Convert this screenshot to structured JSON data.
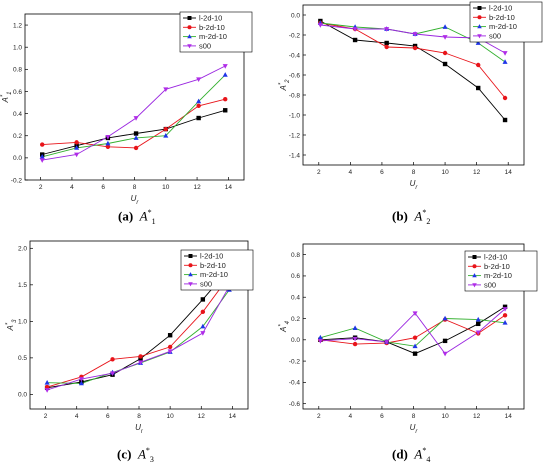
{
  "legend_labels": [
    "l-2d-10",
    "b-2d-10",
    "m-2d-10",
    "s00"
  ],
  "series_colors": [
    "#000000",
    "#e8141a",
    "#1f35e8",
    "#b02ce8"
  ],
  "marker_shapes": [
    "square",
    "circle",
    "triangle-up",
    "triangle-down"
  ],
  "line_colors": [
    "#000000",
    "#e8141a",
    "#33b02f",
    "#9a26e0"
  ],
  "chart_data": [
    {
      "type": "line",
      "caption": {
        "letter": "(a)",
        "var": "A",
        "sup": "*",
        "sub": "1"
      },
      "ylabel": {
        "var": "A",
        "sup": "*",
        "sub": "1"
      },
      "xlabel": {
        "var": "U",
        "sub": "r"
      },
      "x": [
        2.1,
        4.3,
        6.3,
        8.1,
        10.0,
        12.1,
        13.8
      ],
      "xticks": [
        "2",
        "4",
        "6",
        "8",
        "10",
        "12",
        "14"
      ],
      "yticks": [
        "-0.2",
        "0.0",
        "0.2",
        "0.4",
        "0.6",
        "0.8",
        "1.0",
        "1.2"
      ],
      "xlim": [
        1,
        15
      ],
      "ylim": [
        -0.2,
        1.3
      ],
      "series": [
        {
          "name": "l-2d-10",
          "values": [
            0.03,
            0.11,
            0.18,
            0.22,
            0.26,
            0.36,
            0.43
          ]
        },
        {
          "name": "b-2d-10",
          "values": [
            0.12,
            0.14,
            0.1,
            0.09,
            0.26,
            0.47,
            0.53
          ]
        },
        {
          "name": "m-2d-10",
          "values": [
            0.01,
            0.09,
            0.13,
            0.18,
            0.2,
            0.51,
            0.75
          ]
        },
        {
          "name": "s00",
          "values": [
            -0.02,
            0.03,
            0.19,
            0.36,
            0.62,
            0.71,
            0.83
          ]
        }
      ]
    },
    {
      "type": "line",
      "caption": {
        "letter": "(b)",
        "var": "A",
        "sup": "*",
        "sub": "2"
      },
      "ylabel": {
        "var": "A",
        "sup": "*",
        "sub": "2"
      },
      "xlabel": {
        "var": "U",
        "sub": "r"
      },
      "x": [
        2.1,
        4.3,
        6.3,
        8.1,
        10.0,
        12.1,
        13.8
      ],
      "xticks": [
        "2",
        "4",
        "6",
        "8",
        "10",
        "12",
        "14"
      ],
      "yticks": [
        "0.0",
        "-0.2",
        "-0.4",
        "-0.6",
        "-0.8",
        "-1.0",
        "-1.2",
        "-1.4"
      ],
      "xlim": [
        1,
        15
      ],
      "ylim": [
        -1.5,
        0.1
      ],
      "series": [
        {
          "name": "l-2d-10",
          "values": [
            -0.06,
            -0.25,
            -0.28,
            -0.31,
            -0.49,
            -0.73,
            -1.05
          ]
        },
        {
          "name": "b-2d-10",
          "values": [
            -0.08,
            -0.14,
            -0.32,
            -0.33,
            -0.38,
            -0.5,
            -0.83
          ]
        },
        {
          "name": "m-2d-10",
          "values": [
            -0.08,
            -0.12,
            -0.14,
            -0.19,
            -0.12,
            -0.28,
            -0.47
          ]
        },
        {
          "name": "s00",
          "values": [
            -0.1,
            -0.14,
            -0.14,
            -0.19,
            -0.22,
            -0.23,
            -0.38
          ]
        }
      ]
    },
    {
      "type": "line",
      "caption": {
        "letter": "(c)",
        "var": "A",
        "sup": "*",
        "sub": "3"
      },
      "ylabel": {
        "var": "A",
        "sup": "*",
        "sub": "3"
      },
      "xlabel": {
        "var": "U",
        "sub": "r"
      },
      "x": [
        2.1,
        4.3,
        6.3,
        8.1,
        10.0,
        12.1,
        13.8
      ],
      "xticks": [
        "2",
        "4",
        "6",
        "8",
        "10",
        "12",
        "14"
      ],
      "yticks": [
        "0.0",
        "0.5",
        "1.0",
        "1.5",
        "2.0"
      ],
      "xlim": [
        1,
        15
      ],
      "ylim": [
        -0.2,
        2.1
      ],
      "series": [
        {
          "name": "l-2d-10",
          "values": [
            0.09,
            0.17,
            0.27,
            0.49,
            0.81,
            1.3,
            1.72
          ]
        },
        {
          "name": "b-2d-10",
          "values": [
            0.1,
            0.24,
            0.48,
            0.52,
            0.65,
            1.13,
            1.62
          ]
        },
        {
          "name": "m-2d-10",
          "values": [
            0.16,
            0.15,
            0.3,
            0.43,
            0.58,
            0.93,
            1.43
          ]
        },
        {
          "name": "s00",
          "values": [
            0.06,
            0.21,
            0.29,
            0.44,
            0.59,
            0.84,
            1.48
          ]
        }
      ]
    },
    {
      "type": "line",
      "caption": {
        "letter": "(d)",
        "var": "A",
        "sup": "*",
        "sub": "4"
      },
      "ylabel": {
        "var": "A",
        "sup": "*",
        "sub": "4"
      },
      "xlabel": {
        "var": "U",
        "sub": "r"
      },
      "x": [
        2.1,
        4.3,
        6.3,
        8.1,
        10.0,
        12.1,
        13.8
      ],
      "xticks": [
        "2",
        "4",
        "6",
        "8",
        "10",
        "12",
        "14"
      ],
      "yticks": [
        "0.8",
        "0.6",
        "0.4",
        "0.2",
        "0.0",
        "-0.2",
        "-0.4",
        "-0.6"
      ],
      "xlim": [
        1,
        15
      ],
      "ylim": [
        -0.65,
        0.9
      ],
      "series": [
        {
          "name": "l-2d-10",
          "values": [
            0.0,
            0.02,
            -0.02,
            -0.13,
            -0.01,
            0.15,
            0.31
          ]
        },
        {
          "name": "b-2d-10",
          "values": [
            0.0,
            -0.04,
            -0.03,
            0.02,
            0.19,
            0.06,
            0.23
          ]
        },
        {
          "name": "m-2d-10",
          "values": [
            0.02,
            0.11,
            -0.02,
            -0.06,
            0.2,
            0.19,
            0.16
          ]
        },
        {
          "name": "s00",
          "values": [
            -0.01,
            0.01,
            -0.02,
            0.25,
            -0.13,
            0.07,
            0.29
          ]
        }
      ]
    }
  ]
}
